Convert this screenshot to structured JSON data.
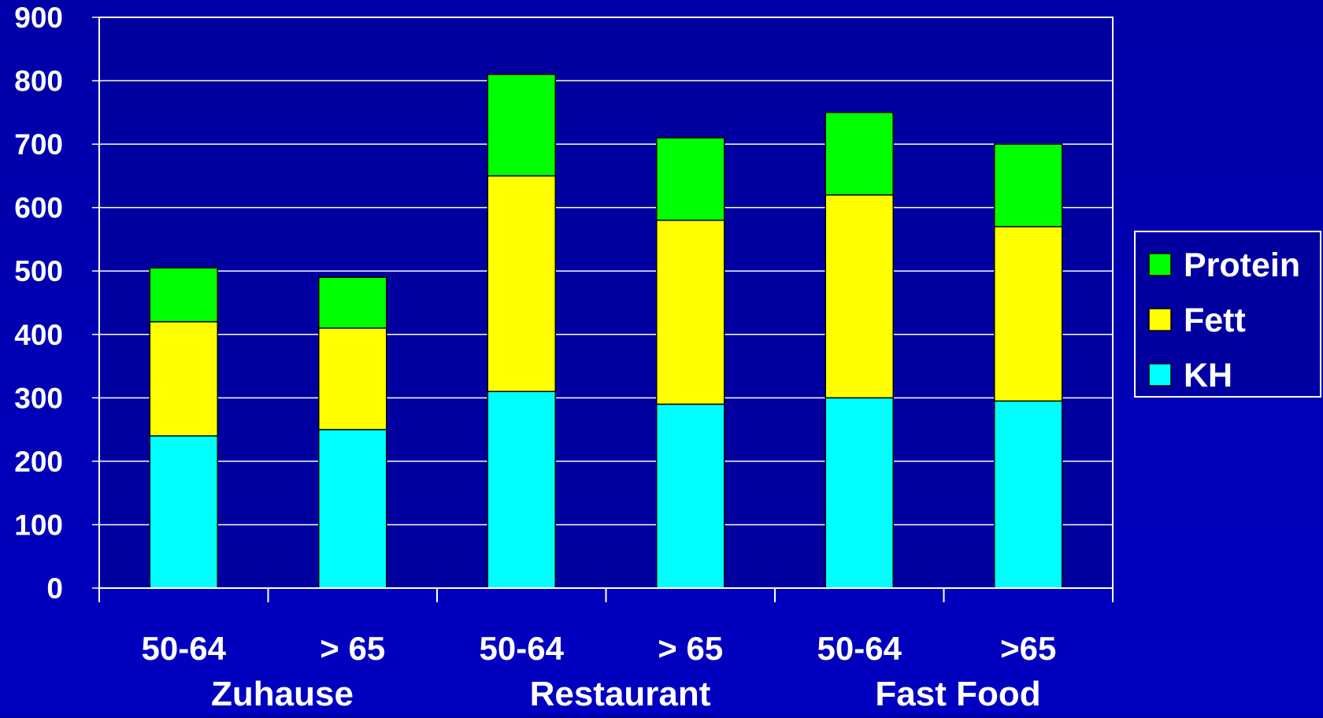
{
  "chart_data": {
    "type": "bar",
    "stacked": true,
    "categories": [
      "50-64",
      "> 65",
      "50-64",
      "> 65",
      "50-64",
      ">65"
    ],
    "groups": [
      "Zuhause",
      "Restaurant",
      "Fast Food"
    ],
    "series": [
      {
        "name": "KH",
        "color": "#00ffff",
        "values": [
          240,
          250,
          310,
          290,
          300,
          295
        ]
      },
      {
        "name": "Fett",
        "color": "#ffff00",
        "values": [
          180,
          160,
          340,
          290,
          320,
          275
        ]
      },
      {
        "name": "Protein",
        "color": "#00ff00",
        "values": [
          85,
          80,
          160,
          130,
          130,
          130
        ]
      }
    ],
    "ylim": [
      0,
      900
    ],
    "yticks": [
      0,
      100,
      200,
      300,
      400,
      500,
      600,
      700,
      800,
      900
    ],
    "xlabel": "",
    "ylabel": "",
    "title": "",
    "grid": true,
    "legend": {
      "position": "right",
      "entries": [
        "Protein",
        "Fett",
        "KH"
      ]
    },
    "colors": {
      "background": "#0000b4",
      "plot_background": "#0000a0",
      "grid": "#ffffff",
      "text": "#ffffff",
      "bar_outline": "#000000"
    }
  }
}
